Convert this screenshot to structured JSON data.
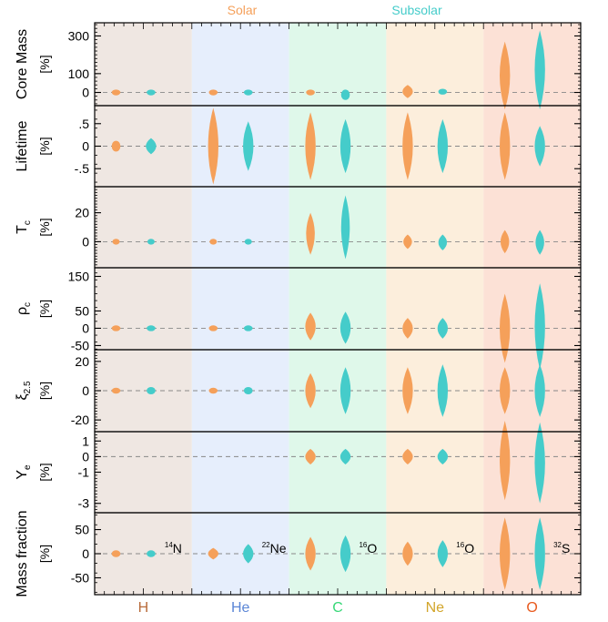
{
  "legend": [
    {
      "label": "Solar",
      "color": "#F5A05A"
    },
    {
      "label": "Subsolar",
      "color": "#45CCCA"
    }
  ],
  "burning_stages": [
    {
      "label": "H",
      "bg": "#EFE7E2",
      "label_color": "#B86B3A"
    },
    {
      "label": "He",
      "bg": "#E6EEFC",
      "label_color": "#5B86D6"
    },
    {
      "label": "C",
      "bg": "#DFF8EA",
      "label_color": "#38D878"
    },
    {
      "label": "Ne",
      "bg": "#FCEEDC",
      "label_color": "#D2A52A"
    },
    {
      "label": "O",
      "bg": "#FCE1D6",
      "label_color": "#E85A1E"
    }
  ],
  "panels": [
    {
      "id": "core-mass",
      "ylabel": "Core Mass",
      "unit": "[%]",
      "ticks": [
        {
          "v": 300,
          "l": "300"
        },
        {
          "v": 100,
          "l": "100"
        },
        {
          "v": 0,
          "l": "0"
        }
      ],
      "ylim": [
        -70,
        370
      ],
      "solar": [
        [
          -12,
          12
        ],
        [
          -12,
          12
        ],
        [
          -12,
          12
        ],
        [
          -30,
          40
        ],
        [
          -90,
          270
        ]
      ],
      "subsolar": [
        [
          -12,
          12
        ],
        [
          -12,
          12
        ],
        [
          -40,
          15
        ],
        [
          -10,
          18
        ],
        [
          -90,
          330
        ]
      ]
    },
    {
      "id": "lifetime",
      "ylabel": "Lifetime",
      "unit": "[%]",
      "ticks": [
        {
          "v": 0.5,
          "l": ".5"
        },
        {
          "v": 0,
          "l": "0"
        },
        {
          "v": -0.5,
          "l": "-.5"
        }
      ],
      "ylim": [
        -0.9,
        0.9
      ],
      "solar": [
        [
          -0.12,
          0.12
        ],
        [
          -0.85,
          0.85
        ],
        [
          -0.75,
          0.75
        ],
        [
          -0.75,
          0.75
        ],
        [
          -0.75,
          0.75
        ]
      ],
      "subsolar": [
        [
          -0.18,
          0.18
        ],
        [
          -0.55,
          0.55
        ],
        [
          -0.6,
          0.6
        ],
        [
          -0.6,
          0.6
        ],
        [
          -0.45,
          0.45
        ]
      ]
    },
    {
      "id": "core-temperature",
      "ylabel": "T",
      "ylabel_sub": "c",
      "unit": "[%]",
      "ticks": [
        {
          "v": 20,
          "l": "20"
        },
        {
          "v": 0,
          "l": "0"
        }
      ],
      "ylim": [
        -18,
        38
      ],
      "solar": [
        [
          -1.5,
          1.5
        ],
        [
          -1.5,
          1.5
        ],
        [
          -9,
          20
        ],
        [
          -5,
          5
        ],
        [
          -8,
          8
        ]
      ],
      "subsolar": [
        [
          -1.5,
          1.5
        ],
        [
          -2,
          2
        ],
        [
          -12,
          32
        ],
        [
          -6,
          5
        ],
        [
          -9,
          8
        ]
      ]
    },
    {
      "id": "core-density",
      "ylabel": "ρ",
      "ylabel_sub": "c",
      "unit": "[%]",
      "ticks": [
        {
          "v": 150,
          "l": "150"
        },
        {
          "v": 50,
          "l": "50"
        },
        {
          "v": 0,
          "l": "0"
        },
        {
          "v": -50,
          "l": "-50"
        }
      ],
      "ylim": [
        -62,
        175
      ],
      "solar": [
        [
          -8,
          8
        ],
        [
          -8,
          8
        ],
        [
          -35,
          45
        ],
        [
          -30,
          30
        ],
        [
          -100,
          100
        ]
      ],
      "subsolar": [
        [
          -8,
          8
        ],
        [
          -8,
          8
        ],
        [
          -45,
          48
        ],
        [
          -30,
          30
        ],
        [
          -120,
          130
        ]
      ]
    },
    {
      "id": "compactness",
      "ylabel": "ξ",
      "ylabel_sub": "2.5",
      "unit": "[%]",
      "ticks": [
        {
          "v": 20,
          "l": "20"
        },
        {
          "v": 0,
          "l": "0"
        },
        {
          "v": -20,
          "l": "-20"
        }
      ],
      "ylim": [
        -28,
        28
      ],
      "solar": [
        [
          -2,
          2
        ],
        [
          -2,
          2
        ],
        [
          -12,
          12
        ],
        [
          -16,
          16
        ],
        [
          -16,
          16
        ]
      ],
      "subsolar": [
        [
          -2.5,
          2.5
        ],
        [
          -2.5,
          2.5
        ],
        [
          -16,
          16
        ],
        [
          -18,
          18
        ],
        [
          -18,
          18
        ]
      ]
    },
    {
      "id": "electron-fraction",
      "ylabel": "Y",
      "ylabel_sub": "e",
      "unit": "[%]",
      "ticks": [
        {
          "v": 1,
          "l": "1"
        },
        {
          "v": 0,
          "l": "0"
        },
        {
          "v": -1,
          "l": "-1"
        },
        {
          "v": -3,
          "l": "-3"
        }
      ],
      "ylim": [
        -3.6,
        1.6
      ],
      "solar": [
        null,
        null,
        [
          -0.5,
          0.5
        ],
        [
          -0.5,
          0.5
        ],
        [
          -2.8,
          2.3
        ]
      ],
      "subsolar": [
        null,
        null,
        [
          -0.5,
          0.5
        ],
        [
          -0.5,
          0.5
        ],
        [
          -3.0,
          2.2
        ]
      ]
    },
    {
      "id": "mass-fraction",
      "ylabel": "Mass fraction",
      "unit": "[%]",
      "ticks": [
        {
          "v": 50,
          "l": "50"
        },
        {
          "v": 0,
          "l": "0"
        },
        {
          "v": -50,
          "l": "-50"
        }
      ],
      "ylim": [
        -85,
        85
      ],
      "solar": [
        [
          -7,
          7
        ],
        [
          -12,
          12
        ],
        [
          -35,
          35
        ],
        [
          -25,
          25
        ],
        [
          -75,
          75
        ]
      ],
      "subsolar": [
        [
          -7,
          7
        ],
        [
          -20,
          20
        ],
        [
          -38,
          38
        ],
        [
          -28,
          28
        ],
        [
          -75,
          75
        ]
      ],
      "isotopes": [
        {
          "mass": "14",
          "el": "N"
        },
        {
          "mass": "22",
          "el": "Ne"
        },
        {
          "mass": "16",
          "el": "O"
        },
        {
          "mass": "16",
          "el": "O"
        },
        {
          "mass": "32",
          "el": "S"
        }
      ]
    }
  ]
}
